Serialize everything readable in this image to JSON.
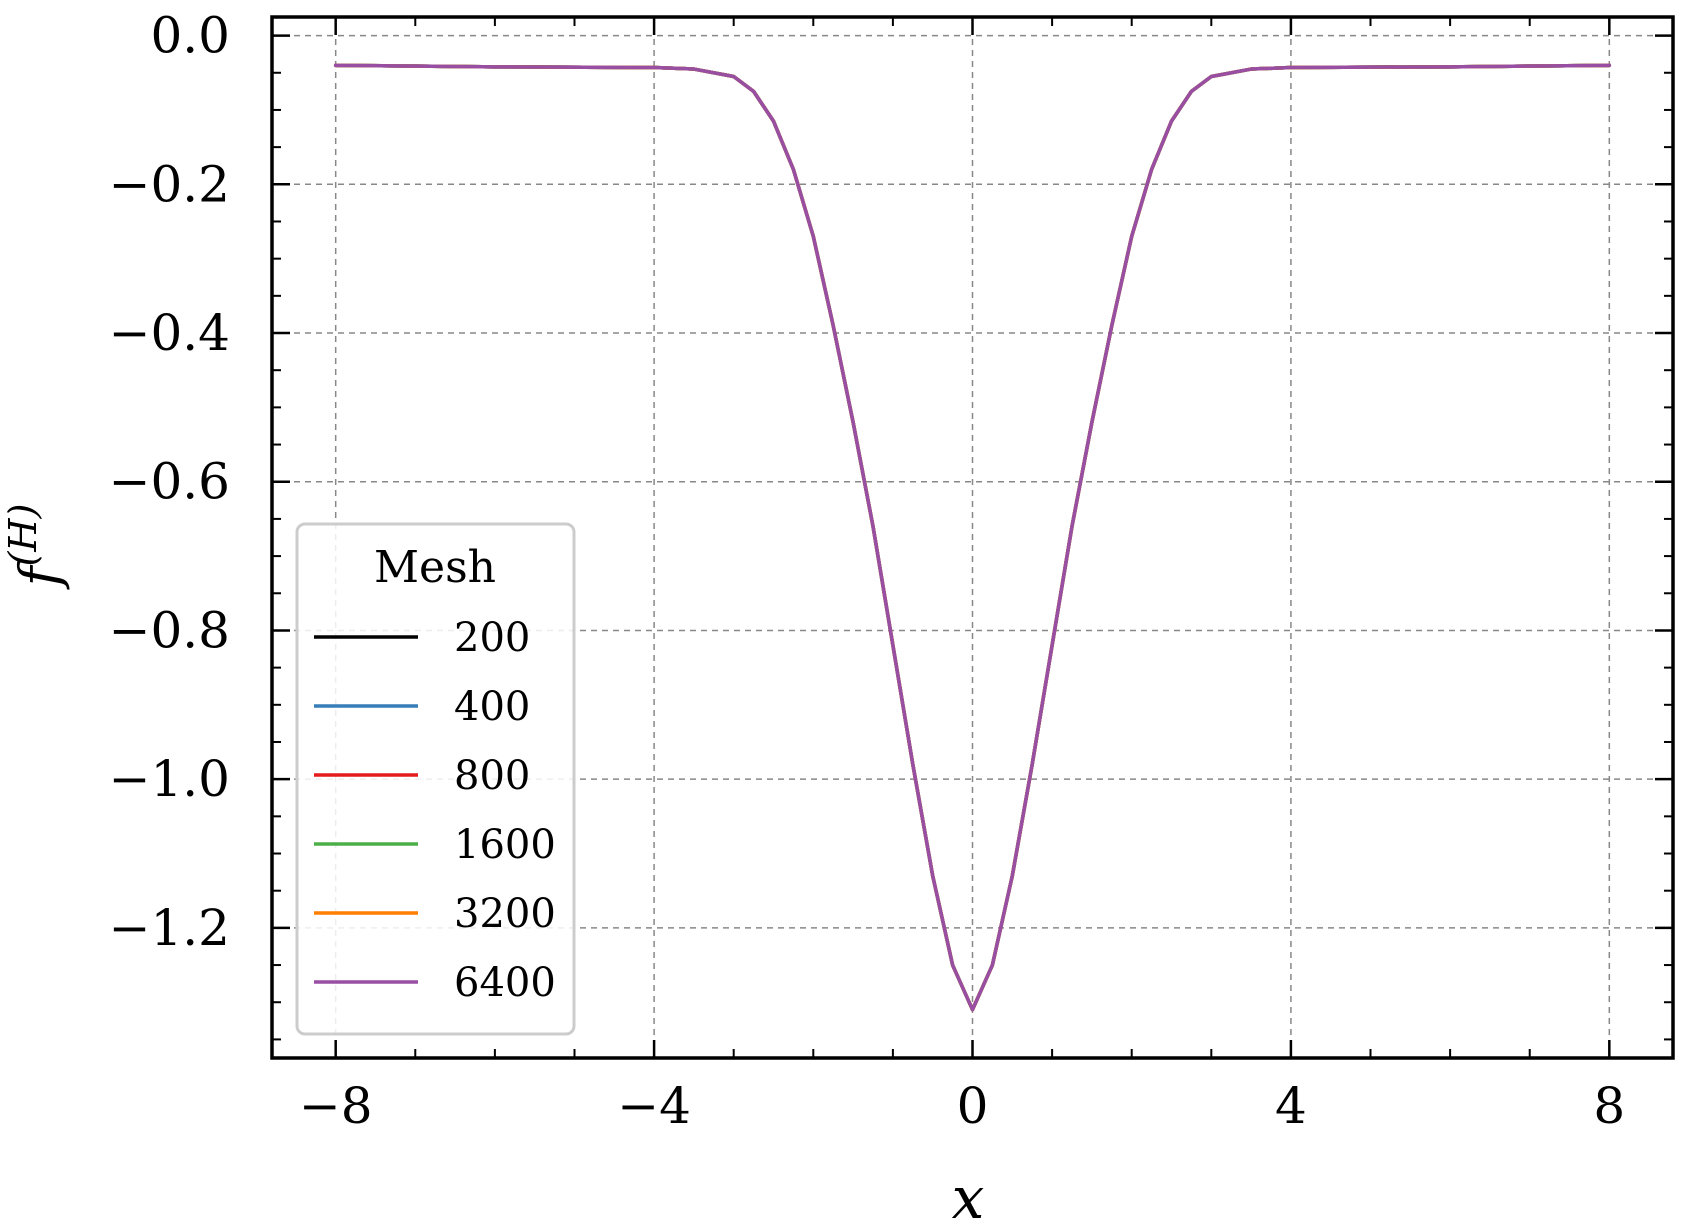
{
  "chart_data": {
    "type": "line",
    "xlabel": "x",
    "ylabel": "f(H)",
    "xlim": [
      -8.8,
      8.8
    ],
    "ylim": [
      -1.375,
      0.025
    ],
    "xticks": [
      -8,
      -4,
      0,
      4,
      8
    ],
    "xtick_labels": [
      "−8",
      "−4",
      "0",
      "4",
      "8"
    ],
    "yticks": [
      0.0,
      -0.2,
      -0.4,
      -0.6,
      -0.8,
      -1.0,
      -1.2
    ],
    "ytick_labels": [
      "0.0",
      "−0.2",
      "−0.4",
      "−0.6",
      "−0.8",
      "−1.0",
      "−1.2"
    ],
    "grid": true,
    "legend": {
      "title": "Mesh",
      "placement": "lower-left"
    },
    "series": [
      {
        "name": "200",
        "color": "#000000"
      },
      {
        "name": "400",
        "color": "#377eb8"
      },
      {
        "name": "800",
        "color": "#e41a1c"
      },
      {
        "name": "1600",
        "color": "#4daf4a"
      },
      {
        "name": "3200",
        "color": "#ff7f00"
      },
      {
        "name": "6400",
        "color": "#984ea3"
      }
    ],
    "x": [
      -8,
      -6,
      -4,
      -3.5,
      -3,
      -2.75,
      -2.5,
      -2.25,
      -2,
      -1.75,
      -1.5,
      -1.25,
      -1,
      -0.75,
      -0.5,
      -0.25,
      0,
      0.25,
      0.5,
      0.75,
      1,
      1.25,
      1.5,
      1.75,
      2,
      2.25,
      2.5,
      2.75,
      3,
      3.5,
      4,
      6,
      8
    ],
    "y": [
      -0.04,
      -0.042,
      -0.043,
      -0.045,
      -0.055,
      -0.075,
      -0.115,
      -0.18,
      -0.27,
      -0.39,
      -0.52,
      -0.66,
      -0.82,
      -0.98,
      -1.13,
      -1.25,
      -1.31,
      -1.25,
      -1.13,
      -0.98,
      -0.82,
      -0.66,
      -0.52,
      -0.39,
      -0.27,
      -0.18,
      -0.115,
      -0.075,
      -0.055,
      -0.045,
      -0.043,
      -0.042,
      -0.04
    ]
  }
}
